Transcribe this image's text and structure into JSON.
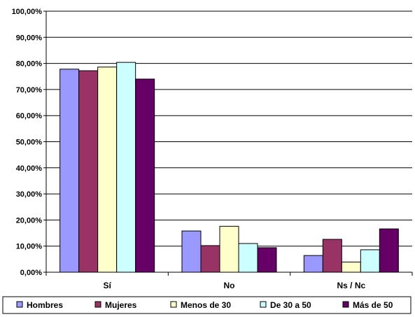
{
  "chart_data": {
    "type": "bar",
    "title": "",
    "xlabel": "",
    "ylabel": "",
    "categories": [
      "Sí",
      "No",
      "Ns / Nc"
    ],
    "series": [
      {
        "name": "Hombres",
        "values": [
          77.8,
          15.8,
          6.4
        ],
        "color": "#9999ff"
      },
      {
        "name": "Mujeres",
        "values": [
          77.2,
          10.2,
          12.6
        ],
        "color": "#993366"
      },
      {
        "name": "Menos de 30",
        "values": [
          78.6,
          17.6,
          3.9
        ],
        "color": "#ffffcc"
      },
      {
        "name": "De 30 a 50",
        "values": [
          80.4,
          11.0,
          8.6
        ],
        "color": "#ccffff"
      },
      {
        "name": "Más de 50",
        "values": [
          74.0,
          9.4,
          16.6
        ],
        "color": "#660066"
      }
    ],
    "ylim": [
      0,
      100
    ],
    "y_ticks": [
      "0,00%",
      "10,00%",
      "20,00%",
      "30,00%",
      "40,00%",
      "50,00%",
      "60,00%",
      "70,00%",
      "80,00%",
      "90,00%",
      "100,00%"
    ],
    "grid": true,
    "legend_position": "bottom"
  }
}
